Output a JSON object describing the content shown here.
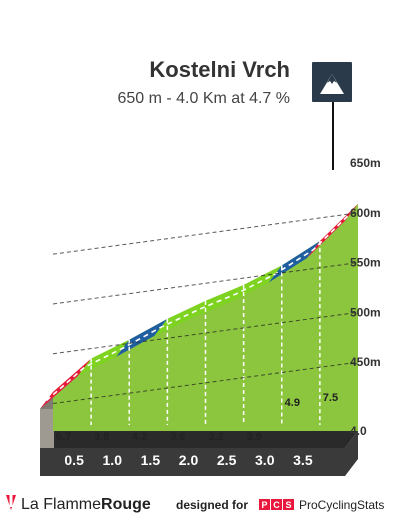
{
  "title": "Kostelni Vrch",
  "subtitle": "650 m - 4.0 Km at 4.7 %",
  "footer": {
    "brand_prefix": "La Flamme",
    "brand_suffix": "Rouge",
    "designed_for": "designed for",
    "pcs_badge": [
      "P",
      "C",
      "S"
    ],
    "pcs_name": "ProCyclingStats"
  },
  "icons": {
    "summit": "mountain-summit-icon",
    "brand": "flame-logo-icon"
  },
  "colors": {
    "grade_green": "#7ed321",
    "grade_blue": "#1f5fa0",
    "grade_red": "#e8193c",
    "fill_green": "#8cc63f",
    "km_bar": "#3a3a3a",
    "start_wall": "#9e9a91",
    "summit_box": "#2b3a4a"
  },
  "chart_data": {
    "type": "area",
    "title": "Kostelni Vrch",
    "subtitle": "650 m - 4.0 Km at 4.7 %",
    "distance_unit": "km",
    "elevation_unit": "m",
    "total_distance": "4.0",
    "distance_ticks": [
      "0.5",
      "1.0",
      "1.5",
      "2.0",
      "2.5",
      "3.0",
      "3.5"
    ],
    "elevation_ticks": [
      "450m",
      "500m",
      "550m",
      "600m",
      "650m"
    ],
    "ylim": [
      420,
      650
    ],
    "segments": [
      {
        "from_km": 0.0,
        "to_km": 0.5,
        "gradient": "6.7",
        "grade_class": "red"
      },
      {
        "from_km": 0.5,
        "to_km": 1.0,
        "gradient": "3.8",
        "grade_class": "green"
      },
      {
        "from_km": 1.0,
        "to_km": 1.5,
        "gradient": "4.2",
        "grade_class": "blue"
      },
      {
        "from_km": 1.5,
        "to_km": 2.0,
        "gradient": "3.6",
        "grade_class": "green"
      },
      {
        "from_km": 2.0,
        "to_km": 2.5,
        "gradient": "3.2",
        "grade_class": "green"
      },
      {
        "from_km": 2.5,
        "to_km": 3.0,
        "gradient": "3.9",
        "grade_class": "green"
      },
      {
        "from_km": 3.0,
        "to_km": 3.5,
        "gradient": "4.9",
        "grade_class": "blue"
      },
      {
        "from_km": 3.5,
        "to_km": 4.0,
        "gradient": "7.5",
        "grade_class": "red"
      }
    ]
  }
}
